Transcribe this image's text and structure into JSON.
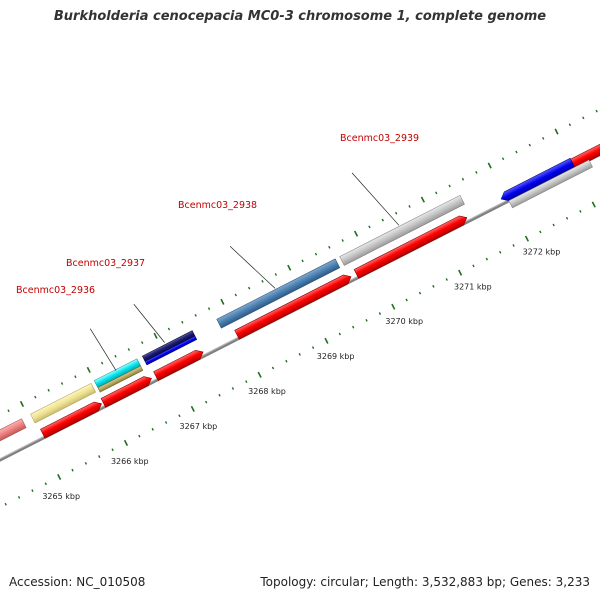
{
  "title": "Burkholderia cenocepacia MC0-3 chromosome 1, complete genome",
  "footer": {
    "accession": "Accession: NC_010508",
    "summary": "Topology: circular; Length: 3,532,883 bp; Genes: 3,233"
  },
  "scale_labels": [
    "3265 kbp",
    "3266 kbp",
    "3267 kbp",
    "3268 kbp",
    "3269 kbp",
    "3270 kbp",
    "3271 kbp",
    "3272 kbp"
  ],
  "gene_labels": [
    "Bcenmc03_2936",
    "Bcenmc03_2937",
    "Bcenmc03_2938",
    "Bcenmc03_2939"
  ],
  "colors": {
    "backbone": "#808080",
    "cds_strand": "#ff0000",
    "tick_major": "#1e6e1e",
    "tick_minor": "#1e6e1e",
    "label": "#c00000"
  }
}
